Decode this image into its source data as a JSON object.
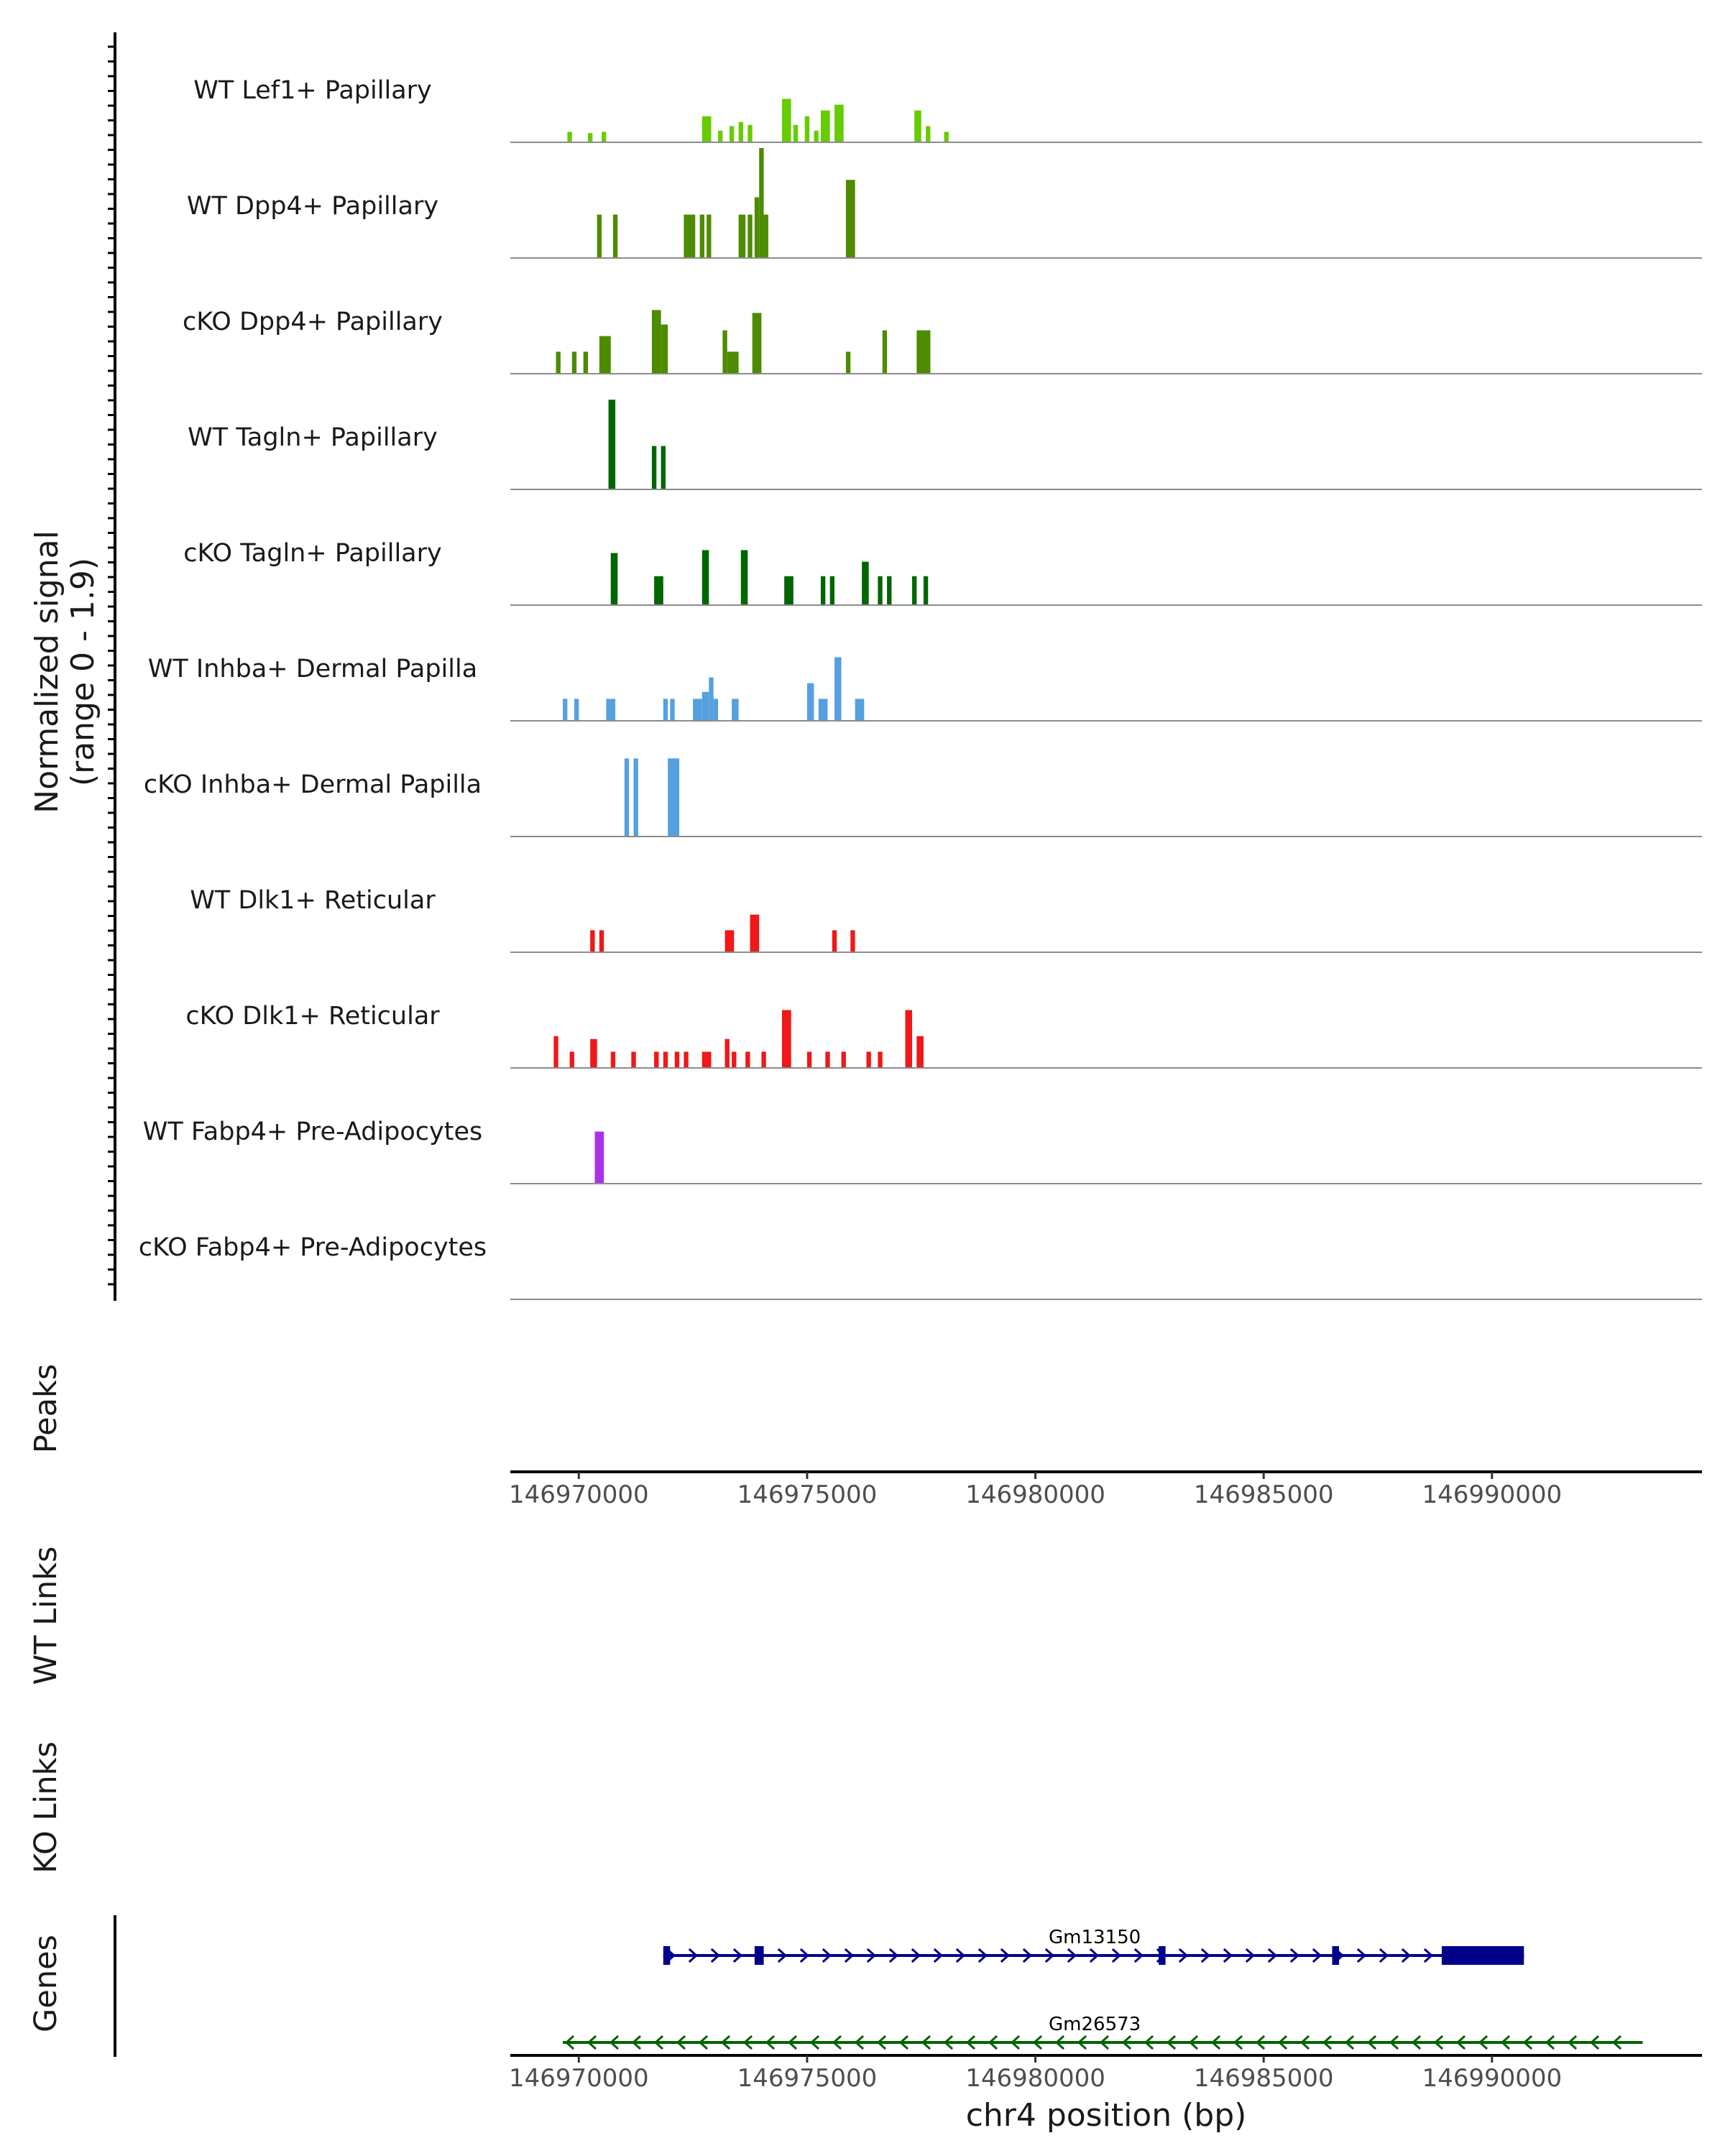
{
  "chart_data": {
    "type": "area",
    "title": "",
    "chromosome": "chr4",
    "xlabel": "chr4 position (bp)",
    "ylabel": "Normalized signal",
    "ylabel_range": "(range 0 - 1.9)",
    "ylim": [
      0,
      1.9
    ],
    "xlim": [
      146968500,
      146994600
    ],
    "xticks": [
      146970000,
      146975000,
      146980000,
      146985000,
      146990000
    ],
    "xtick_labels": [
      "146970000",
      "146975000",
      "146980000",
      "146985000",
      "146990000"
    ],
    "coverage_tracks": [
      {
        "name": "WT Lef1+ Papillary",
        "color": "#66CC00",
        "regions": [
          [
            146969750,
            146969850,
            0.18
          ],
          [
            146970200,
            146970300,
            0.16
          ],
          [
            146970500,
            146970600,
            0.18
          ],
          [
            146972700,
            146972900,
            0.45
          ],
          [
            146973050,
            146973150,
            0.2
          ],
          [
            146973300,
            146973400,
            0.28
          ],
          [
            146973500,
            146973600,
            0.35
          ],
          [
            146973700,
            146973800,
            0.3
          ],
          [
            146974450,
            146974650,
            0.75
          ],
          [
            146974700,
            146974800,
            0.3
          ],
          [
            146974950,
            146975050,
            0.45
          ],
          [
            146975150,
            146975250,
            0.2
          ],
          [
            146975300,
            146975500,
            0.55
          ],
          [
            146975600,
            146975800,
            0.65
          ],
          [
            146977350,
            146977500,
            0.55
          ],
          [
            146977600,
            146977700,
            0.28
          ],
          [
            146978000,
            146978100,
            0.18
          ]
        ]
      },
      {
        "name": "WT Dpp4+ Papillary",
        "color": "#4D8C00",
        "regions": [
          [
            146970400,
            146970500,
            0.75
          ],
          [
            146970750,
            146970850,
            0.75
          ],
          [
            146972300,
            146972550,
            0.75
          ],
          [
            146972650,
            146972750,
            0.75
          ],
          [
            146972800,
            146972900,
            0.75
          ],
          [
            146973500,
            146973650,
            0.75
          ],
          [
            146973700,
            146973800,
            0.75
          ],
          [
            146973850,
            146973950,
            1.05
          ],
          [
            146973950,
            146974050,
            2.0
          ],
          [
            146974050,
            146974150,
            0.75
          ],
          [
            146975850,
            146976050,
            1.35
          ]
        ]
      },
      {
        "name": "cKO Dpp4+ Papillary",
        "color": "#4D8C00",
        "regions": [
          [
            146969500,
            146969600,
            0.38
          ],
          [
            146969850,
            146969950,
            0.38
          ],
          [
            146970100,
            146970200,
            0.38
          ],
          [
            146970450,
            146970700,
            0.65
          ],
          [
            146971600,
            146971800,
            1.1
          ],
          [
            146971800,
            146971950,
            0.85
          ],
          [
            146973150,
            146973250,
            0.75
          ],
          [
            146973250,
            146973500,
            0.38
          ],
          [
            146973800,
            146974000,
            1.05
          ],
          [
            146975850,
            146975950,
            0.38
          ],
          [
            146976650,
            146976750,
            0.75
          ],
          [
            146977400,
            146977700,
            0.75
          ]
        ]
      },
      {
        "name": "WT Tagln+ Papillary",
        "color": "#006600",
        "regions": [
          [
            146970650,
            146970800,
            1.55
          ],
          [
            146971600,
            146971700,
            0.75
          ],
          [
            146971800,
            146971900,
            0.75
          ]
        ]
      },
      {
        "name": "cKO Tagln+ Papillary",
        "color": "#006600",
        "regions": [
          [
            146970700,
            146970850,
            0.9
          ],
          [
            146971650,
            146971750,
            0.5
          ],
          [
            146971750,
            146971850,
            0.5
          ],
          [
            146972700,
            146972850,
            0.95
          ],
          [
            146973550,
            146973700,
            0.95
          ],
          [
            146974500,
            146974700,
            0.5
          ],
          [
            146975300,
            146975400,
            0.5
          ],
          [
            146975500,
            146975600,
            0.5
          ],
          [
            146976200,
            146976350,
            0.75
          ],
          [
            146976550,
            146976650,
            0.5
          ],
          [
            146976750,
            146976850,
            0.5
          ],
          [
            146977300,
            146977400,
            0.5
          ],
          [
            146977550,
            146977650,
            0.5
          ]
        ]
      },
      {
        "name": "WT Inhba+ Dermal Papilla",
        "color": "#56A0E0",
        "regions": [
          [
            146969650,
            146969750,
            0.38
          ],
          [
            146969900,
            146970000,
            0.38
          ],
          [
            146970600,
            146970800,
            0.38
          ],
          [
            146971850,
            146971950,
            0.38
          ],
          [
            146972000,
            146972100,
            0.38
          ],
          [
            146972500,
            146972700,
            0.38
          ],
          [
            146972700,
            146972850,
            0.5
          ],
          [
            146972850,
            146972950,
            0.75
          ],
          [
            146972950,
            146973050,
            0.38
          ],
          [
            146973350,
            146973500,
            0.38
          ],
          [
            146975000,
            146975150,
            0.65
          ],
          [
            146975250,
            146975450,
            0.38
          ],
          [
            146975600,
            146975750,
            1.1
          ],
          [
            146976050,
            146976250,
            0.38
          ]
        ]
      },
      {
        "name": "cKO Inhba+ Dermal Papilla",
        "color": "#56A0E0",
        "regions": [
          [
            146971000,
            146971100,
            1.35
          ],
          [
            146971200,
            146971300,
            1.35
          ],
          [
            146971950,
            146972200,
            1.35
          ]
        ]
      },
      {
        "name": "WT Dlk1+ Reticular",
        "color": "#F01818",
        "regions": [
          [
            146970250,
            146970350,
            0.38
          ],
          [
            146970450,
            146970550,
            0.38
          ],
          [
            146973200,
            146973400,
            0.38
          ],
          [
            146973750,
            146973950,
            0.65
          ],
          [
            146975550,
            146975650,
            0.38
          ],
          [
            146975950,
            146976050,
            0.38
          ]
        ]
      },
      {
        "name": "cKO Dlk1+ Reticular",
        "color": "#F01818",
        "regions": [
          [
            146969450,
            146969550,
            0.55
          ],
          [
            146969800,
            146969900,
            0.28
          ],
          [
            146970250,
            146970400,
            0.5
          ],
          [
            146970700,
            146970800,
            0.28
          ],
          [
            146971150,
            146971250,
            0.28
          ],
          [
            146971650,
            146971750,
            0.28
          ],
          [
            146971850,
            146971950,
            0.28
          ],
          [
            146972100,
            146972200,
            0.28
          ],
          [
            146972300,
            146972400,
            0.28
          ],
          [
            146972700,
            146972900,
            0.28
          ],
          [
            146973200,
            146973300,
            0.5
          ],
          [
            146973350,
            146973450,
            0.28
          ],
          [
            146973650,
            146973750,
            0.28
          ],
          [
            146974000,
            146974100,
            0.28
          ],
          [
            146974450,
            146974650,
            1.0
          ],
          [
            146975000,
            146975100,
            0.28
          ],
          [
            146975400,
            146975500,
            0.28
          ],
          [
            146975750,
            146975850,
            0.28
          ],
          [
            146976300,
            146976400,
            0.28
          ],
          [
            146976550,
            146976650,
            0.28
          ],
          [
            146977150,
            146977300,
            1.0
          ],
          [
            146977400,
            146977550,
            0.55
          ]
        ]
      },
      {
        "name": "WT Fabp4+ Pre-Adipocytes",
        "color": "#A833E8",
        "regions": [
          [
            146970350,
            146970550,
            0.9
          ]
        ]
      },
      {
        "name": "cKO Fabp4+ Pre-Adipocytes",
        "color": "#A833E8",
        "regions": []
      }
    ],
    "side_panels": [
      "Peaks",
      "WT Links",
      "KO Links",
      "Genes"
    ],
    "genes": [
      {
        "name": "Gm13150",
        "strand": "+",
        "color": "#00008B",
        "start": 146971850,
        "end": 146990700,
        "exons": [
          [
            146971850,
            146972000
          ],
          [
            146973850,
            146974050
          ],
          [
            146982700,
            146982850
          ],
          [
            146986500,
            146986650
          ],
          [
            146988900,
            146990700
          ]
        ]
      },
      {
        "name": "Gm26573",
        "strand": "-",
        "color": "#006400",
        "start": 146969650,
        "end": 146993300,
        "exons": []
      }
    ]
  }
}
